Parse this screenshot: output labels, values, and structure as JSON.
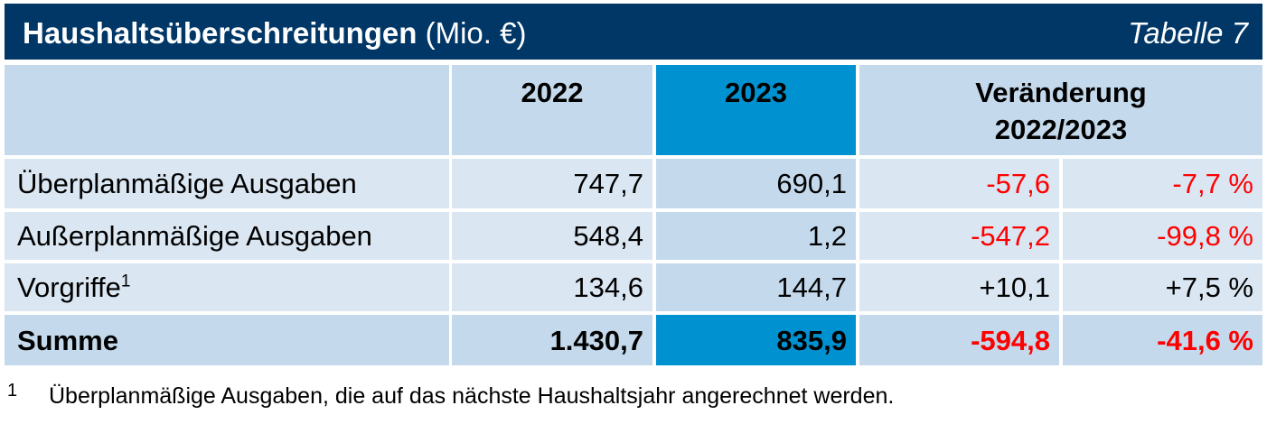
{
  "title": {
    "main": "Haushaltsüberschreitungen",
    "unit": "(Mio. €)",
    "label": "Tabelle 7"
  },
  "header": {
    "col_2022": "2022",
    "col_2023": "2023",
    "col_change_line1": "Veränderung",
    "col_change_line2": "2022/2023"
  },
  "rows": [
    {
      "label": "Überplanmäßige Ausgaben",
      "sup": "",
      "v2022": "747,7",
      "v2023": "690,1",
      "abs": "-57,6",
      "pct": "-7,7 %"
    },
    {
      "label": "Außerplanmäßige Ausgaben",
      "sup": "",
      "v2022": "548,4",
      "v2023": "1,2",
      "abs": "-547,2",
      "pct": "-99,8 %"
    },
    {
      "label": "Vorgriffe",
      "sup": "1",
      "v2022": "134,6",
      "v2023": "144,7",
      "abs": "+10,1",
      "pct": "+7,5 %"
    }
  ],
  "total": {
    "label": "Summe",
    "v2022": "1.430,7",
    "v2023": "835,9",
    "abs": "-594,8",
    "pct": "-41,6 %"
  },
  "footnote": {
    "mark": "1",
    "text": "Überplanmäßige Ausgaben, die auf das nächste Haushaltsjahr angerechnet werden."
  },
  "colors": {
    "title_bg": "#003767",
    "header_bg": "#c4d9ec",
    "row_bg": "#dae6f2",
    "highlight": "#0091d0",
    "negative": "#ff0000"
  }
}
